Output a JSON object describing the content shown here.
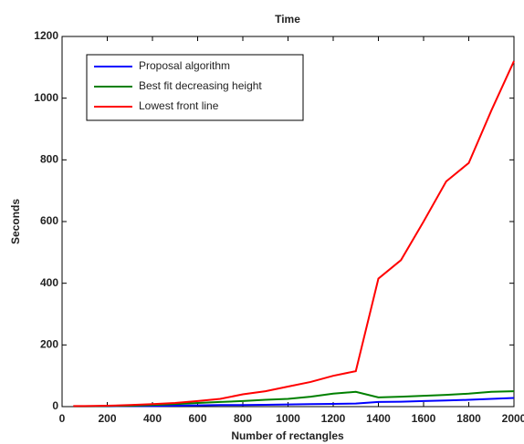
{
  "chart_data": {
    "type": "line",
    "title": "Time",
    "x_label": "Number of rectangles",
    "y_label": "Seconds",
    "x": [
      50,
      100,
      200,
      300,
      400,
      500,
      600,
      700,
      800,
      900,
      1000,
      1100,
      1200,
      1300,
      1400,
      1500,
      1600,
      1700,
      1800,
      1900,
      2000
    ],
    "series": [
      {
        "name": "Proposal algorithm",
        "color": "#0000ff",
        "values": [
          1,
          1,
          1,
          2,
          2,
          3,
          4,
          5,
          5,
          6,
          7,
          8,
          9,
          10,
          15,
          16,
          18,
          20,
          22,
          25,
          28
        ]
      },
      {
        "name": "Best fit decreasing height",
        "color": "#008000",
        "values": [
          1,
          1,
          2,
          3,
          5,
          8,
          12,
          15,
          18,
          22,
          25,
          32,
          42,
          48,
          30,
          32,
          35,
          38,
          42,
          48,
          50
        ]
      },
      {
        "name": "Lowest front line",
        "color": "#ff0000",
        "values": [
          2,
          2,
          3,
          5,
          8,
          12,
          18,
          25,
          40,
          50,
          65,
          80,
          100,
          115,
          415,
          475,
          600,
          730,
          790,
          960,
          1120
        ]
      }
    ],
    "xlim": [
      0,
      2000
    ],
    "xticks": [
      0,
      200,
      400,
      600,
      800,
      1000,
      1200,
      1400,
      1600,
      1800,
      2000
    ],
    "ylim": [
      0,
      1200
    ],
    "yticks": [
      0,
      200,
      400,
      600,
      800,
      1000,
      1200
    ],
    "legend": "upper left"
  }
}
